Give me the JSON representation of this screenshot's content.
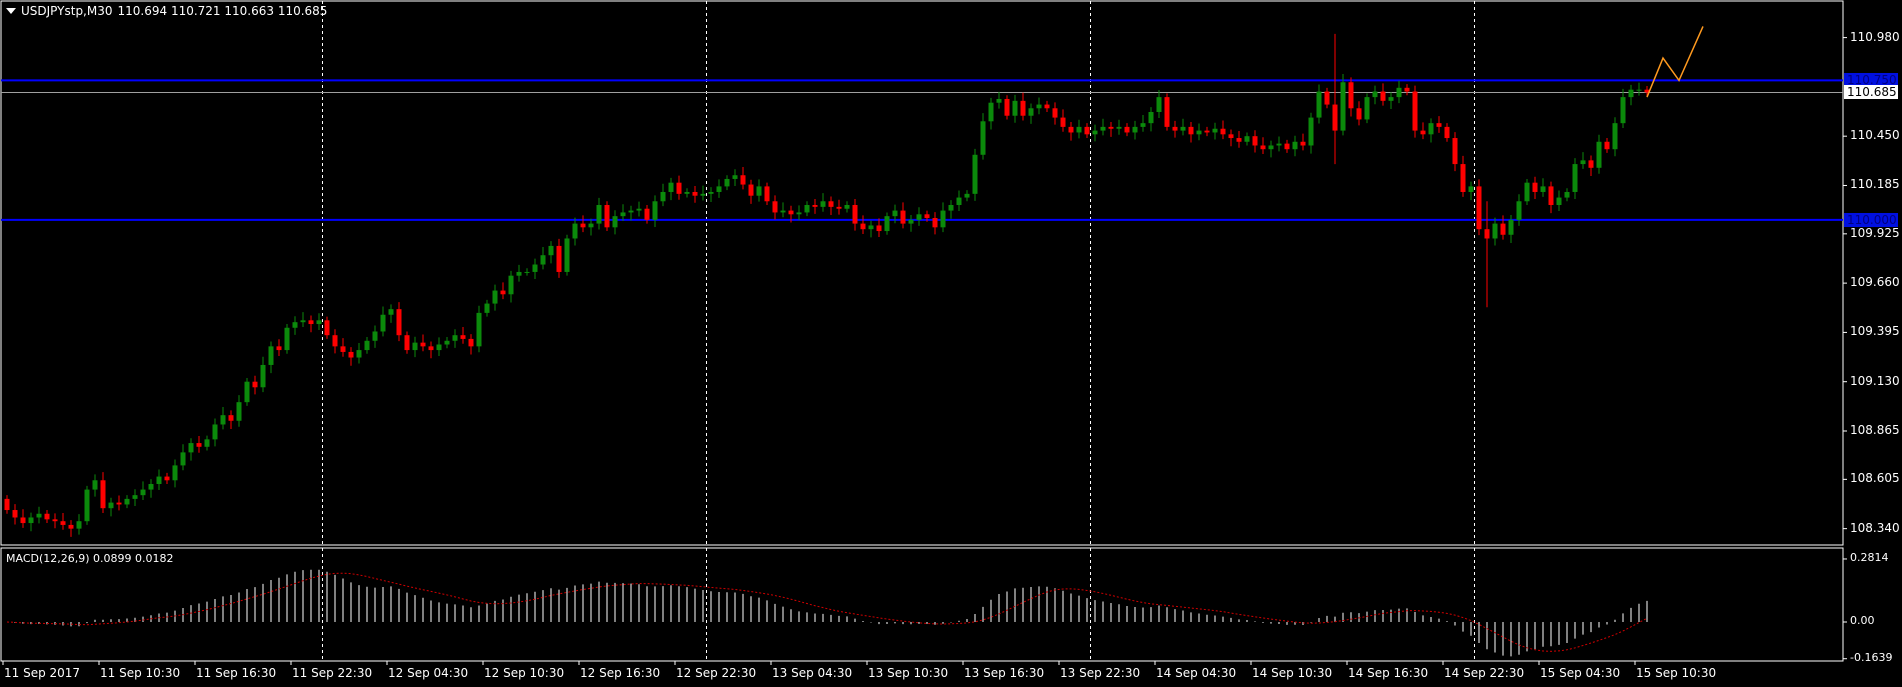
{
  "header": {
    "symbol": "USDJPYstp,M30",
    "ohlc_text": "110.694 110.721 110.663 110.685"
  },
  "macd_header": "MACD(12,26,9) 0.0899 0.0182",
  "colors": {
    "background": "#000000",
    "bull": "#0b8a0b",
    "bear": "#ff0000",
    "hline": "#0000ff",
    "bid_line": "#a0a0a0",
    "drawing": "#ff9a1f",
    "macd_hist": "#ffffff",
    "macd_signal": "#d00000"
  },
  "price_axis": {
    "labels": [
      "110.980",
      "110.450",
      "110.185",
      "109.925",
      "109.660",
      "109.395",
      "109.130",
      "108.865",
      "108.605",
      "108.340"
    ],
    "current_price": "110.685",
    "hlines": [
      "110.750",
      "110.000"
    ]
  },
  "macd_axis": {
    "labels": [
      "0.2814",
      "0.00",
      "-0.1639"
    ]
  },
  "time_axis": {
    "labels": [
      "11 Sep 2017",
      "11 Sep 10:30",
      "11 Sep 16:30",
      "11 Sep 22:30",
      "12 Sep 04:30",
      "12 Sep 10:30",
      "12 Sep 16:30",
      "12 Sep 22:30",
      "13 Sep 04:30",
      "13 Sep 10:30",
      "13 Sep 16:30",
      "13 Sep 22:30",
      "14 Sep 04:30",
      "14 Sep 10:30",
      "14 Sep 16:30",
      "14 Sep 22:30",
      "15 Sep 04:30",
      "15 Sep 10:30"
    ],
    "label_every_bars": 12,
    "day_separator_bars": [
      39,
      87,
      135,
      183
    ]
  },
  "chart_data": {
    "type": "candlestick",
    "timeframe": "M30",
    "ylim": [
      108.28,
      111.16
    ],
    "macd_ylim": [
      -0.1639,
      0.2814
    ],
    "close": [
      108.44,
      108.4,
      108.37,
      108.4,
      108.42,
      108.39,
      108.38,
      108.36,
      108.34,
      108.38,
      108.55,
      108.6,
      108.45,
      108.48,
      108.47,
      108.5,
      108.52,
      108.55,
      108.58,
      108.62,
      108.6,
      108.68,
      108.75,
      108.8,
      108.78,
      108.82,
      108.9,
      108.95,
      108.92,
      109.02,
      109.13,
      109.1,
      109.22,
      109.32,
      109.3,
      109.42,
      109.45,
      109.46,
      109.44,
      109.46,
      109.38,
      109.32,
      109.29,
      109.26,
      109.3,
      109.35,
      109.4,
      109.49,
      109.52,
      109.38,
      109.3,
      109.34,
      109.32,
      109.3,
      109.33,
      109.35,
      109.38,
      109.36,
      109.32,
      109.5,
      109.55,
      109.62,
      109.6,
      109.7,
      109.72,
      109.72,
      109.76,
      109.81,
      109.86,
      109.72,
      109.9,
      109.98,
      109.96,
      109.98,
      110.08,
      109.96,
      110.02,
      110.04,
      110.05,
      110.06,
      110.0,
      110.1,
      110.15,
      110.2,
      110.14,
      110.15,
      110.13,
      110.14,
      110.15,
      110.18,
      110.22,
      110.24,
      110.19,
      110.13,
      110.18,
      110.1,
      110.04,
      110.05,
      110.03,
      110.04,
      110.08,
      110.07,
      110.1,
      110.07,
      110.06,
      110.08,
      109.98,
      109.95,
      109.97,
      109.94,
      110.02,
      110.05,
      109.98,
      110.0,
      110.03,
      110.01,
      109.96,
      110.05,
      110.08,
      110.12,
      110.14,
      110.35,
      110.53,
      110.63,
      110.65,
      110.56,
      110.64,
      110.56,
      110.6,
      110.62,
      110.6,
      110.55,
      110.5,
      110.47,
      110.5,
      110.46,
      110.48,
      110.5,
      110.49,
      110.5,
      110.47,
      110.5,
      110.52,
      110.58,
      110.66,
      110.5,
      110.48,
      110.5,
      110.46,
      110.48,
      110.47,
      110.49,
      110.46,
      110.44,
      110.42,
      110.45,
      110.4,
      110.38,
      110.4,
      110.41,
      110.38,
      110.42,
      110.4,
      110.55,
      110.69,
      110.62,
      110.48,
      110.74,
      110.6,
      110.54,
      110.66,
      110.69,
      110.64,
      110.66,
      110.71,
      110.69,
      110.48,
      110.46,
      110.52,
      110.5,
      110.44,
      110.3,
      110.15,
      110.18,
      109.95,
      109.9,
      109.98,
      109.92,
      110.0,
      110.1,
      110.2,
      110.15,
      110.18,
      110.08,
      110.12,
      110.15,
      110.3,
      110.32,
      110.28,
      110.42,
      110.38,
      110.52,
      110.66,
      110.7,
      110.7,
      110.685
    ],
    "first_open": 108.5,
    "wicks": [
      {
        "bar": 166,
        "high": 111.0,
        "low": 110.3
      },
      {
        "bar": 185,
        "high": 110.1,
        "low": 109.53
      }
    ],
    "drawing_line": [
      {
        "bar": 205,
        "price": 110.66
      },
      {
        "bar": 207,
        "price": 110.87
      },
      {
        "bar": 209,
        "price": 110.75
      },
      {
        "bar": 212,
        "price": 111.04
      }
    ]
  }
}
